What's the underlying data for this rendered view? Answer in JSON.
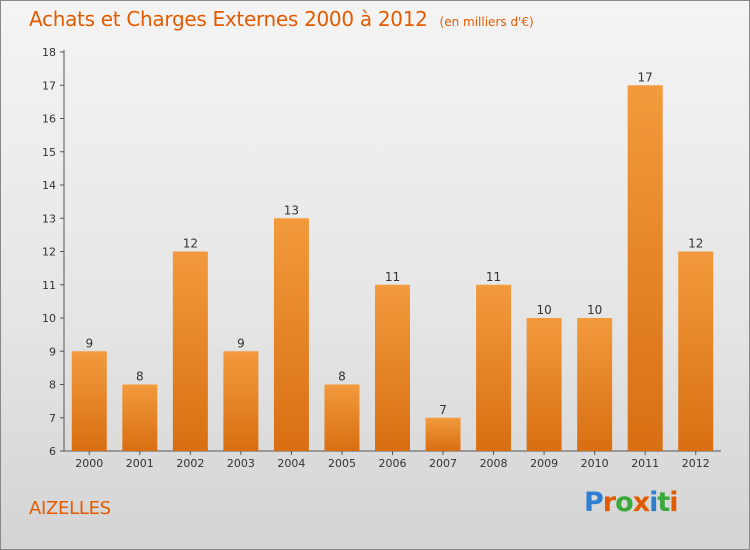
{
  "chart_data": {
    "type": "bar",
    "title": "Achats et Charges Externes 2000 à 2012",
    "subtitle": "(en milliers d'€)",
    "categories": [
      "2000",
      "2001",
      "2002",
      "2003",
      "2004",
      "2005",
      "2006",
      "2007",
      "2008",
      "2009",
      "2010",
      "2011",
      "2012"
    ],
    "values": [
      9,
      8,
      12,
      9,
      13,
      8,
      11,
      7,
      11,
      10,
      10,
      17,
      12
    ],
    "ylim": [
      6,
      18
    ],
    "yticks": [
      6,
      7,
      8,
      9,
      10,
      11,
      12,
      13,
      14,
      15,
      16,
      17,
      18
    ],
    "xlabel": "",
    "ylabel": "",
    "grid": false,
    "bar_color": "#f29a3d",
    "bar_color_dark": "#d86f12"
  },
  "footer": {
    "town": "AIZELLES",
    "logo": "Proxiti",
    "logo_colors": [
      "#2f7fd0",
      "#e35b00",
      "#3aa83a",
      "#e35b00",
      "#2f7fd0",
      "#3aa83a",
      "#e35b00"
    ]
  }
}
